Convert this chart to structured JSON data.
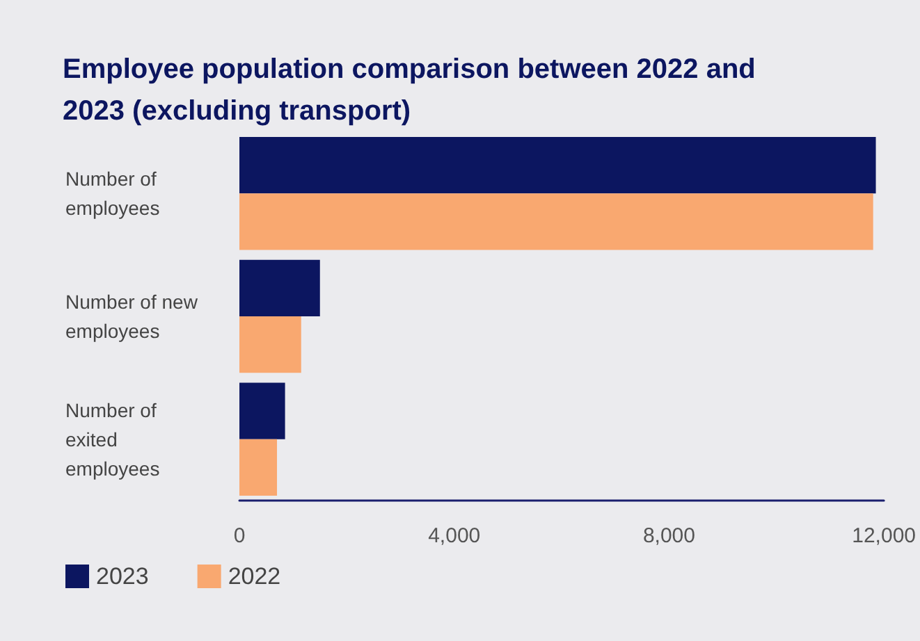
{
  "chart_data": {
    "type": "bar",
    "orientation": "horizontal",
    "title": "Employee population comparison between 2022 and 2023 (excluding transport)",
    "categories": [
      "Number of employees",
      "Number of new employees",
      "Number of exited employees"
    ],
    "series": [
      {
        "name": "2023",
        "color": "#0c1660",
        "values": [
          11850,
          1500,
          850
        ]
      },
      {
        "name": "2022",
        "color": "#f9a870",
        "values": [
          11800,
          1150,
          700
        ]
      }
    ],
    "xlim": [
      0,
      12000
    ],
    "xticks": [
      0,
      {
        "value": 4000,
        "label": "4,000"
      },
      {
        "value": 8000,
        "label": "8,000"
      },
      {
        "value": 12000,
        "label": "12,000"
      }
    ],
    "grid": false,
    "legend": "bottom left"
  }
}
